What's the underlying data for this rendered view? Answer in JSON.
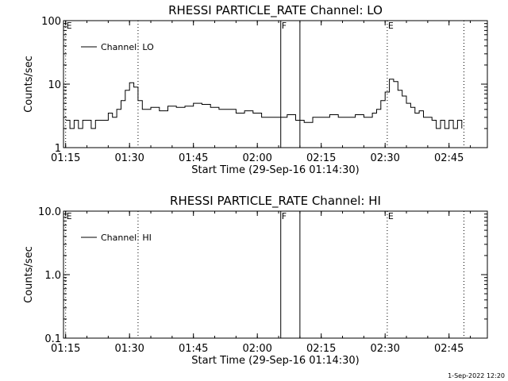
{
  "chart_data": [
    {
      "type": "line",
      "title": "RHESSI PARTICLE_RATE Channel: LO",
      "xlabel": "Start Time (29-Sep-16 01:14:30)",
      "ylabel": "Counts/sec",
      "yscale": "log",
      "xlim": [
        "01:14:30",
        "02:54:00"
      ],
      "ylim": [
        1,
        100
      ],
      "xticks": [
        "01:15",
        "01:30",
        "01:45",
        "02:00",
        "02:15",
        "02:30",
        "02:45"
      ],
      "yticks": [
        "1",
        "10",
        "100"
      ],
      "grid": false,
      "legend": {
        "entries": [
          "Channel: LO"
        ],
        "position": "top-left"
      },
      "markers": [
        {
          "label": "E",
          "x": "01:15:00",
          "style": "dotted"
        },
        {
          "label": "",
          "x": "01:32:00",
          "style": "dotted"
        },
        {
          "label": "F",
          "x": "02:05:30",
          "style": "solid"
        },
        {
          "label": "",
          "x": "02:10:00",
          "style": "solid"
        },
        {
          "label": "E",
          "x": "02:30:30",
          "style": "dotted"
        },
        {
          "label": "",
          "x": "02:48:30",
          "style": "dotted"
        }
      ],
      "series": [
        {
          "name": "Channel: LO",
          "x": [
            "01:15:00",
            "01:16:00",
            "01:17:00",
            "01:18:00",
            "01:19:00",
            "01:20:00",
            "01:21:00",
            "01:22:00",
            "01:23:00",
            "01:24:00",
            "01:25:00",
            "01:26:00",
            "01:27:00",
            "01:28:00",
            "01:29:00",
            "01:30:00",
            "01:31:00",
            "01:32:00",
            "01:33:00",
            "01:35:00",
            "01:37:00",
            "01:39:00",
            "01:41:00",
            "01:43:00",
            "01:45:00",
            "01:47:00",
            "01:49:00",
            "01:51:00",
            "01:53:00",
            "01:55:00",
            "01:57:00",
            "01:59:00",
            "02:01:00",
            "02:03:00",
            "02:05:00",
            "02:07:00",
            "02:09:00",
            "02:11:00",
            "02:13:00",
            "02:15:00",
            "02:17:00",
            "02:19:00",
            "02:21:00",
            "02:23:00",
            "02:25:00",
            "02:27:00",
            "02:28:00",
            "02:29:00",
            "02:30:00",
            "02:31:00",
            "02:32:00",
            "02:33:00",
            "02:34:00",
            "02:35:00",
            "02:36:00",
            "02:37:00",
            "02:38:00",
            "02:39:00",
            "02:40:00",
            "02:41:00",
            "02:42:00",
            "02:43:00",
            "02:44:00",
            "02:45:00",
            "02:46:00",
            "02:47:00",
            "02:48:00"
          ],
          "y": [
            2.7,
            2.0,
            2.7,
            2.0,
            2.7,
            2.7,
            2.0,
            2.7,
            2.7,
            2.7,
            3.5,
            3.0,
            4.0,
            5.5,
            8.0,
            10.5,
            9.0,
            5.5,
            4.0,
            4.3,
            3.8,
            4.5,
            4.3,
            4.5,
            5.0,
            4.8,
            4.3,
            4.0,
            4.0,
            3.5,
            3.8,
            3.5,
            3.0,
            3.0,
            3.0,
            3.3,
            2.7,
            2.5,
            3.0,
            3.0,
            3.3,
            3.0,
            3.0,
            3.3,
            3.0,
            3.5,
            4.0,
            5.5,
            7.5,
            12.0,
            11.0,
            8.0,
            6.5,
            5.0,
            4.3,
            3.5,
            3.8,
            3.0,
            3.0,
            2.7,
            2.0,
            2.7,
            2.0,
            2.7,
            2.0,
            2.7,
            2.0
          ]
        }
      ]
    },
    {
      "type": "line",
      "title": "RHESSI PARTICLE_RATE Channel: HI",
      "xlabel": "Start Time (29-Sep-16 01:14:30)",
      "ylabel": "Counts/sec",
      "yscale": "log",
      "xlim": [
        "01:14:30",
        "02:54:00"
      ],
      "ylim": [
        0.1,
        10
      ],
      "xticks": [
        "01:15",
        "01:30",
        "01:45",
        "02:00",
        "02:15",
        "02:30",
        "02:45"
      ],
      "yticks": [
        "0.1",
        "1.0",
        "10.0"
      ],
      "grid": false,
      "legend": {
        "entries": [
          "Channel: HI"
        ],
        "position": "top-left"
      },
      "markers": [
        {
          "label": "E",
          "x": "01:15:00",
          "style": "dotted"
        },
        {
          "label": "",
          "x": "01:32:00",
          "style": "dotted"
        },
        {
          "label": "F",
          "x": "02:05:30",
          "style": "solid"
        },
        {
          "label": "",
          "x": "02:10:00",
          "style": "solid"
        },
        {
          "label": "E",
          "x": "02:30:30",
          "style": "dotted"
        },
        {
          "label": "",
          "x": "02:48:30",
          "style": "dotted"
        }
      ],
      "series": [
        {
          "name": "Channel: HI",
          "x": [],
          "y": []
        }
      ]
    }
  ],
  "footer": {
    "timestamp": "1-Sep-2022 12:20"
  }
}
